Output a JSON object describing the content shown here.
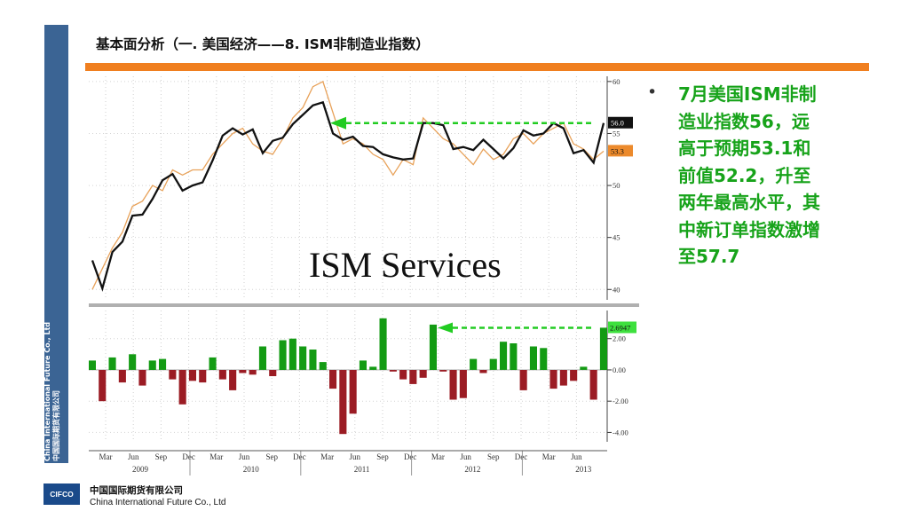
{
  "slide": {
    "title": "基本面分析（一. 美国经济——8. ISM非制造业指数）",
    "sidebar_text_en": "China International Future Co., Ltd",
    "sidebar_text_cn": "中国国际期货有限公司",
    "bullet_mark": "•",
    "bullet_text": "7月美国ISM非制造业指数56，远高于预期53.1和前值52.2，升至两年最高水平，其中新订单指数激增至57.7",
    "footer_logo": "CIFCO",
    "footer_cn": "中国国际期货有限公司",
    "footer_en": "China International Future Co., Ltd",
    "colors": {
      "sidebar": "#3b6494",
      "accent": "#f07f1f",
      "text_green": "#17a31a"
    }
  },
  "chart_data": [
    {
      "type": "line",
      "title": "ISM Services",
      "ylim": [
        39,
        60.5
      ],
      "yticks": [
        "60",
        "55",
        "50",
        "45",
        "40"
      ],
      "x_month_labels": [
        "Mar",
        "Jun",
        "Sep",
        "Dec",
        "Mar",
        "Jun",
        "Sep",
        "Dec",
        "Mar",
        "Jun",
        "Sep",
        "Dec",
        "Mar",
        "Jun",
        "Sep",
        "Dec",
        "Mar",
        "Jun"
      ],
      "x_year_labels": [
        "2009",
        "2010",
        "2011",
        "2012",
        "2013"
      ],
      "last_value_labels": [
        "56.0",
        "53.3"
      ],
      "series": [
        {
          "values": [
            42.8,
            40.1,
            43.6,
            44.6,
            47.1,
            47.2,
            48.7,
            50.5,
            51.1,
            49.5,
            50.0,
            50.3,
            52.4,
            54.8,
            55.5,
            54.9,
            55.4,
            53.1,
            54.3,
            54.6,
            55.9,
            56.8,
            57.7,
            58.0,
            55.0,
            54.4,
            54.7,
            53.8,
            53.7,
            53.0,
            52.7,
            52.5,
            52.6,
            56.0,
            56.0,
            55.8,
            53.5,
            53.7,
            53.4,
            54.4,
            53.5,
            52.6,
            53.6,
            55.3,
            54.8,
            55.0,
            56.0,
            55.5,
            53.1,
            53.4,
            52.2,
            56.0
          ]
        },
        {
          "values": [
            40.0,
            42.0,
            44.0,
            45.5,
            48.0,
            48.5,
            50.0,
            49.5,
            51.5,
            51.0,
            51.5,
            51.5,
            53.0,
            54.0,
            55.0,
            55.5,
            54.0,
            53.3,
            53.0,
            54.5,
            56.5,
            57.5,
            59.5,
            60.0,
            57.0,
            54.0,
            54.5,
            54.0,
            53.0,
            52.5,
            51.0,
            52.5,
            52.0,
            56.5,
            55.5,
            54.5,
            54.0,
            53.0,
            52.0,
            53.5,
            52.5,
            53.0,
            54.5,
            55.0,
            54.0,
            55.0,
            55.5,
            56.0,
            54.0,
            53.5,
            52.5,
            53.3
          ]
        }
      ]
    },
    {
      "type": "bar",
      "ylim": [
        -4.6,
        3.8
      ],
      "yticks": [
        "2.00",
        "0.00",
        "-2.00",
        "-4.00"
      ],
      "last_value_label": "2.6947",
      "values": [
        0.6,
        -2.0,
        0.8,
        -0.8,
        1.0,
        -1.0,
        0.6,
        0.7,
        -0.6,
        -2.2,
        -0.7,
        -0.8,
        0.8,
        -0.6,
        -1.3,
        -0.2,
        -0.3,
        1.5,
        -0.4,
        1.9,
        2.0,
        1.5,
        1.3,
        0.5,
        -1.2,
        -4.1,
        -2.8,
        0.6,
        0.2,
        3.3,
        -0.1,
        -0.6,
        -0.9,
        -0.5,
        2.9,
        -0.1,
        -1.9,
        -1.8,
        0.7,
        -0.2,
        0.7,
        1.8,
        1.7,
        -1.3,
        1.5,
        1.4,
        -1.2,
        -1.0,
        -0.7,
        0.2,
        -1.9,
        2.7
      ]
    }
  ]
}
